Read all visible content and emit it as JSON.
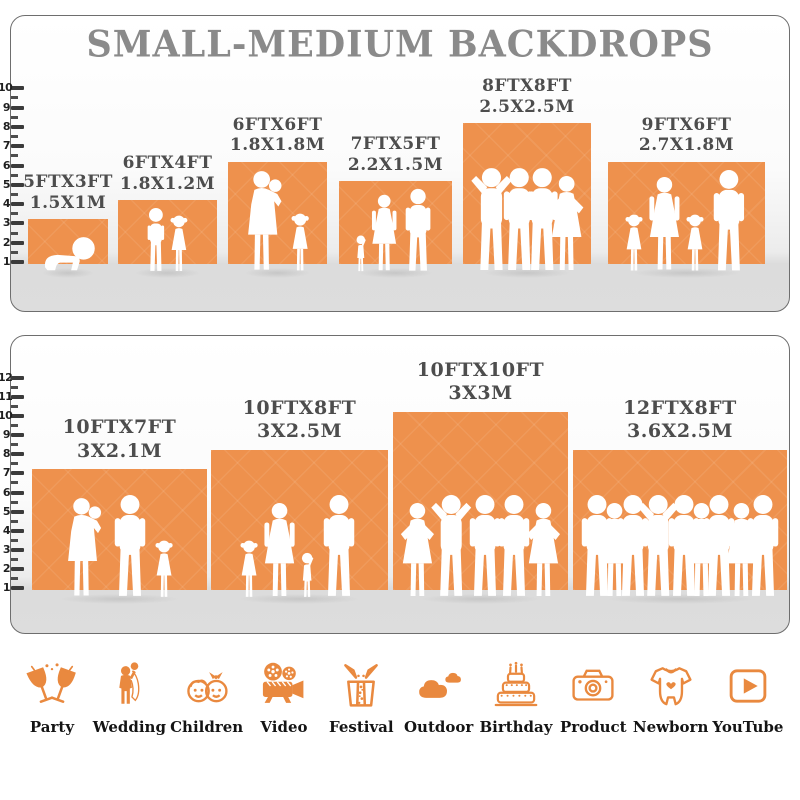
{
  "title": "SMALL-MEDIUM BACKDROPS",
  "colors": {
    "bar_orange": "#EE914D",
    "icon_orange": "#E9893F",
    "title_gray": "#8A8A8A",
    "label_gray": "#4D4D4D"
  },
  "panels": [
    {
      "name": "small-medium-upper",
      "ruler_unit": "FT",
      "ruler_max": 10,
      "bars": [
        {
          "size_ft": "5FTX3FT",
          "size_m": "1.5X1M",
          "width_ft": 5,
          "height_ft": 3,
          "figures": [
            "baby-crawl"
          ]
        },
        {
          "size_ft": "6FTX4FT",
          "size_m": "1.8X1.2M",
          "width_ft": 6,
          "height_ft": 4,
          "figures": [
            "boy",
            "girl"
          ]
        },
        {
          "size_ft": "6FTX6FT",
          "size_m": "1.8X1.8M",
          "width_ft": 6,
          "height_ft": 6,
          "figures": [
            "woman-baby",
            "girl"
          ]
        },
        {
          "size_ft": "7FTX5FT",
          "size_m": "2.2X1.5M",
          "width_ft": 7,
          "height_ft": 5,
          "figures": [
            "toddler",
            "woman",
            "man"
          ]
        },
        {
          "size_ft": "8FTX8FT",
          "size_m": "2.5X2.5M",
          "width_ft": 8,
          "height_ft": 8,
          "figures": [
            "man-armsup",
            "man",
            "man",
            "woman-hip"
          ]
        },
        {
          "size_ft": "9FTX6FT",
          "size_m": "2.7X1.8M",
          "width_ft": 9,
          "height_ft": 6,
          "figures": [
            "girl",
            "woman",
            "girl",
            "man"
          ]
        }
      ]
    },
    {
      "name": "small-medium-lower",
      "ruler_unit": "FT",
      "ruler_max": 12,
      "bars": [
        {
          "size_ft": "10FTX7FT",
          "size_m": "3X2.1M",
          "width_ft": 10,
          "height_ft": 7,
          "figures": [
            "woman-baby",
            "man",
            "girl"
          ]
        },
        {
          "size_ft": "10FTX8FT",
          "size_m": "3X2.5M",
          "width_ft": 10,
          "height_ft": 8,
          "figures": [
            "girl",
            "woman",
            "toddler",
            "man"
          ]
        },
        {
          "size_ft": "10FTX10FT",
          "size_m": "3X3M",
          "width_ft": 10,
          "height_ft": 10,
          "figures": [
            "woman-hip",
            "man-armsup",
            "man",
            "man",
            "woman-hip"
          ]
        },
        {
          "size_ft": "12FTX8FT",
          "size_m": "3.6X2.5M",
          "width_ft": 12,
          "height_ft": 8,
          "figures": [
            "man",
            "woman",
            "man",
            "man-armsup",
            "man",
            "woman",
            "man",
            "woman-hip",
            "man"
          ]
        }
      ]
    }
  ],
  "categories": [
    {
      "label": "Party",
      "icon": "party-icon"
    },
    {
      "label": "Wedding",
      "icon": "wedding-icon"
    },
    {
      "label": "Children",
      "icon": "children-icon"
    },
    {
      "label": "Video",
      "icon": "video-icon"
    },
    {
      "label": "Festival",
      "icon": "festival-icon"
    },
    {
      "label": "Outdoor",
      "icon": "outdoor-icon"
    },
    {
      "label": "Birthday",
      "icon": "birthday-icon"
    },
    {
      "label": "Product",
      "icon": "product-icon"
    },
    {
      "label": "Newborn",
      "icon": "newborn-icon"
    },
    {
      "label": "YouTube",
      "icon": "youtube-icon"
    }
  ]
}
